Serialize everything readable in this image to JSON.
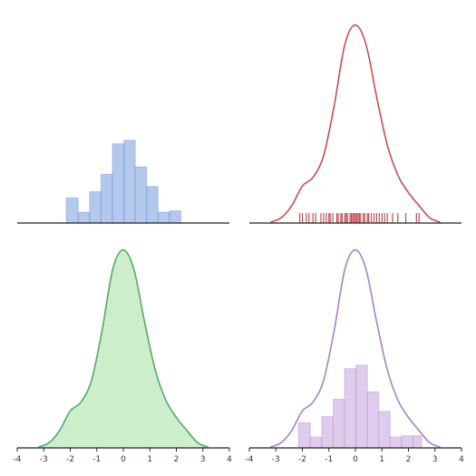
{
  "chart_data": [
    {
      "panel": "top-left",
      "type": "bar",
      "kind": "histogram",
      "color": "#7ea3df",
      "xlim": [
        -4,
        4
      ],
      "ylim": [
        0,
        0.5
      ],
      "grid": false,
      "bin_edges": [
        -2.15,
        -1.7,
        -1.27,
        -0.84,
        -0.41,
        0.02,
        0.45,
        0.88,
        1.31,
        1.74,
        2.17
      ],
      "values": [
        0.058,
        0.025,
        0.072,
        0.112,
        0.182,
        0.19,
        0.129,
        0.084,
        0.025,
        0.028
      ]
    },
    {
      "panel": "top-right",
      "type": "line",
      "kind": "kde-with-rug",
      "color": "#c44e52",
      "xlim": [
        -4,
        4
      ],
      "ylim": [
        0,
        0.5
      ],
      "grid": false,
      "x": [
        -3.2,
        -2.8,
        -2.4,
        -2.0,
        -1.6,
        -1.2,
        -0.8,
        -0.4,
        0.0,
        0.4,
        0.8,
        1.2,
        1.6,
        2.0,
        2.4,
        2.8,
        3.2
      ],
      "y": [
        0.002,
        0.012,
        0.04,
        0.085,
        0.105,
        0.155,
        0.27,
        0.41,
        0.455,
        0.41,
        0.29,
        0.18,
        0.11,
        0.07,
        0.04,
        0.012,
        0.002
      ],
      "rug": [
        -2.1,
        -2.0,
        -1.85,
        -1.75,
        -1.6,
        -1.5,
        -1.3,
        -1.2,
        -1.1,
        -1.0,
        -0.95,
        -0.85,
        -0.7,
        -0.65,
        -0.55,
        -0.5,
        -0.4,
        -0.35,
        -0.3,
        -0.2,
        -0.15,
        -0.1,
        -0.05,
        0.0,
        0.05,
        0.1,
        0.15,
        0.2,
        0.3,
        0.35,
        0.45,
        0.5,
        0.6,
        0.7,
        0.8,
        0.9,
        1.0,
        1.1,
        1.2,
        1.4,
        1.6,
        1.9,
        2.3,
        2.4
      ]
    },
    {
      "panel": "bottom-left",
      "type": "area",
      "kind": "kde-shaded",
      "color": "#55a868",
      "fill": "#c8ecc5",
      "xlim": [
        -4,
        4
      ],
      "ylim": [
        0,
        0.5
      ],
      "grid": false,
      "x": [
        -3.2,
        -2.8,
        -2.4,
        -2.0,
        -1.6,
        -1.2,
        -0.8,
        -0.4,
        0.0,
        0.4,
        0.8,
        1.2,
        1.6,
        2.0,
        2.4,
        2.8,
        3.2
      ],
      "y": [
        0.002,
        0.012,
        0.04,
        0.085,
        0.105,
        0.155,
        0.27,
        0.41,
        0.455,
        0.41,
        0.29,
        0.18,
        0.11,
        0.07,
        0.04,
        0.012,
        0.002
      ],
      "xticks": [
        "-4",
        "-3",
        "-2",
        "-1",
        "0",
        "1",
        "2",
        "3",
        "4"
      ]
    },
    {
      "panel": "bottom-right",
      "type": "bar",
      "kind": "histogram-with-kde",
      "color": "#a77fc9",
      "fill": "#d9c2e8",
      "xlim": [
        -4,
        4
      ],
      "ylim": [
        0,
        0.5
      ],
      "grid": false,
      "bin_edges": [
        -2.15,
        -1.7,
        -1.27,
        -0.84,
        -0.41,
        0.02,
        0.45,
        0.88,
        1.31,
        1.74,
        2.17,
        2.5
      ],
      "values": [
        0.058,
        0.025,
        0.072,
        0.112,
        0.182,
        0.19,
        0.129,
        0.084,
        0.025,
        0.028,
        0.028
      ],
      "kde_x": [
        -3.2,
        -2.8,
        -2.4,
        -2.0,
        -1.6,
        -1.2,
        -0.8,
        -0.4,
        0.0,
        0.4,
        0.8,
        1.2,
        1.6,
        2.0,
        2.4,
        2.8,
        3.2
      ],
      "kde_y": [
        0.002,
        0.012,
        0.04,
        0.085,
        0.105,
        0.155,
        0.27,
        0.41,
        0.455,
        0.41,
        0.29,
        0.18,
        0.11,
        0.07,
        0.04,
        0.012,
        0.002
      ],
      "xticks": [
        "-4",
        "-3",
        "-2",
        "-1",
        "0",
        "1",
        "2",
        "3",
        "4"
      ]
    }
  ]
}
